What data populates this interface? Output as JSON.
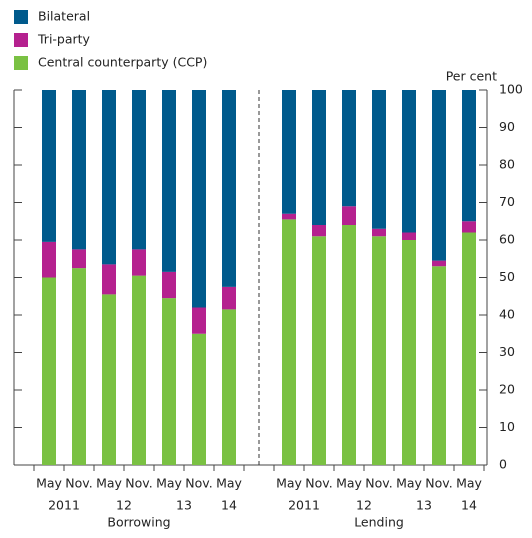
{
  "chart_data": {
    "type": "bar",
    "stacked": true,
    "y_label": "Per cent",
    "groups": [
      {
        "label": "Borrowing",
        "categories": [
          "May",
          "Nov.",
          "May",
          "Nov.",
          "May",
          "Nov.",
          "May"
        ],
        "years": [
          "2011",
          null,
          "12",
          null,
          "13",
          null,
          "14"
        ]
      },
      {
        "label": "Lending",
        "categories": [
          "May",
          "Nov.",
          "May",
          "Nov.",
          "May",
          "Nov.",
          "May"
        ],
        "years": [
          "2011",
          null,
          "12",
          null,
          "13",
          null,
          "14"
        ]
      }
    ],
    "series": [
      {
        "name": "Central counterparty (CCP)",
        "color": "#7ac143",
        "values": [
          50,
          52.5,
          45.5,
          50.5,
          44.5,
          35,
          41.5,
          65.5,
          61,
          64,
          61,
          60,
          53,
          62
        ]
      },
      {
        "name": "Tri-party",
        "color": "#b5218f",
        "values": [
          9.5,
          5,
          8,
          7,
          7,
          7,
          6,
          1.5,
          3,
          5,
          2,
          2,
          1.5,
          3
        ]
      },
      {
        "name": "Bilateral",
        "color": "#005a8c",
        "values": [
          40.5,
          42.5,
          46.5,
          42.5,
          48.5,
          58,
          52.5,
          33,
          36,
          31,
          37,
          38,
          45.5,
          35
        ]
      }
    ],
    "ylim": [
      0,
      100
    ],
    "yticks": [
      0,
      10,
      20,
      30,
      40,
      50,
      60,
      70,
      80,
      90,
      100
    ]
  }
}
